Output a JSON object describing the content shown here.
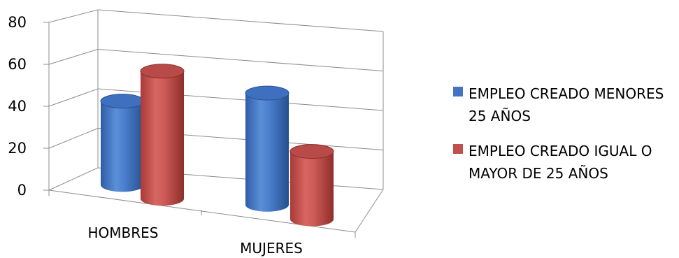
{
  "chart_data": {
    "type": "bar",
    "style": "3d-cylinder",
    "categories": [
      "HOMBRES",
      "MUJERES"
    ],
    "series": [
      {
        "name": "EMPLEO CREADO MENORES 25 AÑOS",
        "color": "#4472C4",
        "values": [
          42,
          56
        ]
      },
      {
        "name": "EMPLEO CREADO IGUAL O MAYOR DE 25 AÑOS",
        "color": "#C0504D",
        "values": [
          64,
          34
        ]
      }
    ],
    "ylim": [
      0,
      80
    ],
    "yticks": [
      "0",
      "20",
      "40",
      "60",
      "80"
    ],
    "grid": true,
    "legend": "right"
  }
}
